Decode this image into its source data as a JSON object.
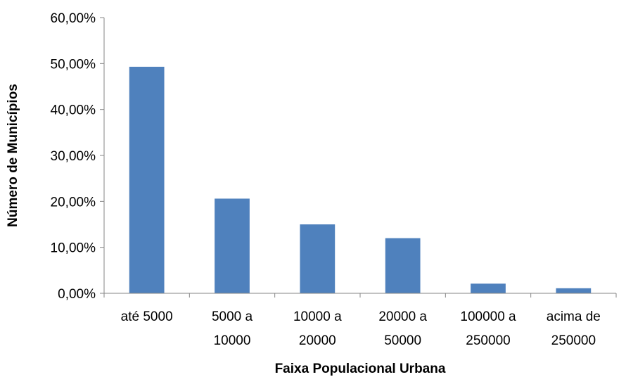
{
  "chart_data": {
    "type": "bar",
    "title": "",
    "xlabel": "Faixa Populacional Urbana",
    "ylabel": "Número de Municípios",
    "categories": [
      [
        "até 5000"
      ],
      [
        "5000 a",
        "10000"
      ],
      [
        "10000 a",
        "20000"
      ],
      [
        "20000 a",
        "50000"
      ],
      [
        "100000 a",
        "250000"
      ],
      [
        "acima de",
        "250000"
      ]
    ],
    "values": [
      0.493,
      0.206,
      0.15,
      0.12,
      0.021,
      0.011
    ],
    "ylim": [
      0,
      0.6
    ],
    "y_ticks": [
      "0,00%",
      "10,00%",
      "20,00%",
      "30,00%",
      "40,00%",
      "50,00%",
      "60,00%"
    ],
    "y_tick_values": [
      0,
      0.1,
      0.2,
      0.3,
      0.4,
      0.5,
      0.6
    ],
    "bar_color": "#4F81BD",
    "grid": false,
    "legend": "none"
  }
}
